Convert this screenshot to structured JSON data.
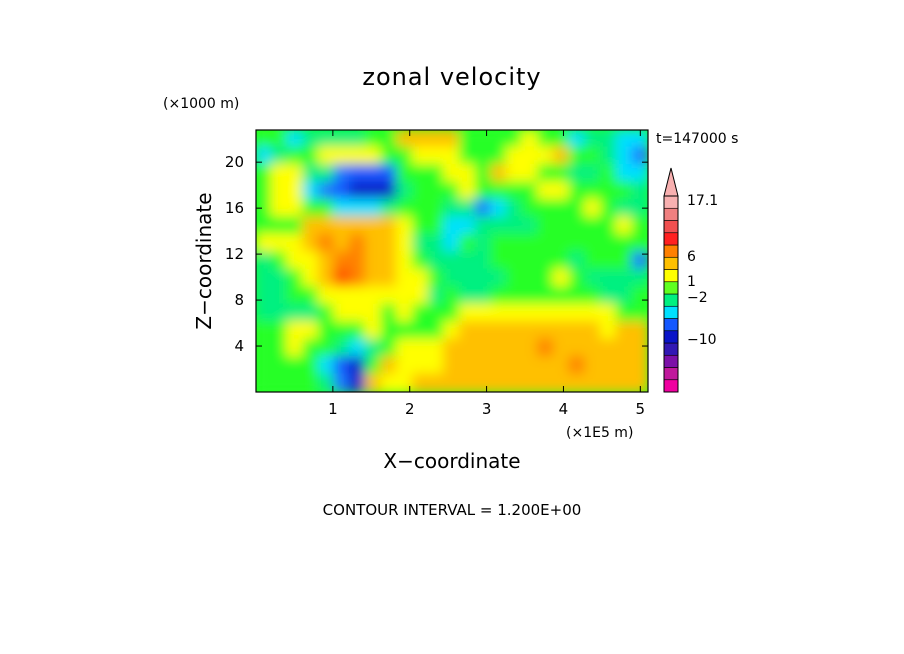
{
  "chart_data": {
    "type": "heatmap",
    "title": "zonal velocity",
    "xlabel": "X−coordinate",
    "ylabel": "Z−coordinate",
    "x_unit": "(×1E5 m)",
    "y_unit": "(×1000 m)",
    "time_label": "t=147000 s",
    "footer": "CONTOUR INTERVAL = 1.200E+00",
    "xlim": [
      0,
      5.1
    ],
    "ylim": [
      0,
      22.8
    ],
    "x_ticks": [
      1,
      2,
      3,
      4,
      5
    ],
    "x_tick_labels": [
      "1",
      "2",
      "3",
      "4",
      "5"
    ],
    "y_ticks": [
      4,
      8,
      12,
      16,
      20
    ],
    "y_tick_labels": [
      "4",
      "8",
      "12",
      "16",
      "20"
    ],
    "grid": false,
    "colorbar": {
      "placement": "right",
      "labels": [
        {
          "text": "17.1",
          "value": 17.1
        },
        {
          "text": "6",
          "value": 6
        },
        {
          "text": "1",
          "value": 1
        },
        {
          "text": "−2",
          "value": -2
        },
        {
          "text": "−10",
          "value": -10
        }
      ],
      "levels": [
        {
          "color": "#f000a0"
        },
        {
          "color": "#c0189c"
        },
        {
          "color": "#7c10a8"
        },
        {
          "color": "#3218b4"
        },
        {
          "color": "#0a14c8"
        },
        {
          "color": "#1458ff"
        },
        {
          "color": "#00e0ff"
        },
        {
          "color": "#00f080"
        },
        {
          "color": "#60ff20"
        },
        {
          "color": "#ffff00"
        },
        {
          "color": "#ffc000"
        },
        {
          "color": "#ff8000"
        },
        {
          "color": "#ff2020"
        },
        {
          "color": "#f05050"
        },
        {
          "color": "#f08080"
        },
        {
          "color": "#f8b0b0"
        }
      ]
    },
    "field": {
      "levels_order": "z from top (22.8) to bottom (0), x from 0 to 5.1",
      "rows": [
        "5534444557777555565534433",
        "3455666655666555666755432",
        "5664421115556657665544533",
        "5663210004555655556655554",
        "5665533345554423455556544",
        "5557777776553344445555565",
        "6667878776443545555555555",
        "4566788776544445555545552",
        "4456798776654444555654444",
        "4455666666645445555555445",
        "4444566656555666666666655",
        "5566555655556777777777677",
        "5565543456667777778777777",
        "5555310576667777777787777",
        "5555420766777777777777777"
      ],
      "legend_codes": {
        "0": "#0a14c8",
        "1": "#1458ff",
        "2": "#1e78ff",
        "3": "#00e0ff",
        "4": "#00f080",
        "5": "#28ff28",
        "6": "#ffff00",
        "7": "#ffc000",
        "8": "#ff8000",
        "9": "#ff5000"
      }
    }
  }
}
